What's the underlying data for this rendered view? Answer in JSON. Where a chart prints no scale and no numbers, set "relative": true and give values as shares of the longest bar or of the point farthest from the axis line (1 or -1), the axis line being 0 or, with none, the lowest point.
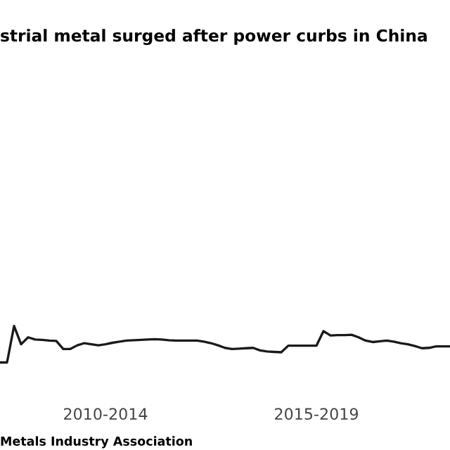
{
  "chart_data": {
    "type": "line",
    "title": "strial metal surged after power curbs in China",
    "annotations": [
      "Metals Industry Association"
    ],
    "relative": true,
    "categories": [
      null,
      null,
      null,
      null,
      null,
      null,
      null,
      null,
      null,
      null,
      null,
      null,
      null,
      null,
      null,
      "2010-2014",
      null,
      null,
      null,
      null,
      null,
      null,
      null,
      null,
      null,
      null,
      null,
      null,
      null,
      null,
      null,
      null,
      null,
      null,
      null,
      null,
      null,
      null,
      null,
      null,
      null,
      null,
      null,
      null,
      null,
      "2015-2019",
      null,
      null,
      null,
      null,
      null,
      null,
      null,
      null,
      null,
      null,
      null,
      null,
      null,
      null,
      null,
      null,
      null,
      null,
      null
    ],
    "series": [
      {
        "color": "#1a1a1a",
        "values": [
          0,
          0,
          1,
          0.5,
          0.69,
          0.63,
          0.62,
          0.6,
          0.59,
          0.37,
          0.37,
          0.47,
          0.53,
          0.5,
          0.47,
          0.5,
          0.54,
          0.57,
          0.6,
          0.61,
          0.62,
          0.63,
          0.64,
          0.63,
          0.61,
          0.6,
          0.6,
          0.6,
          0.6,
          0.57,
          0.53,
          0.47,
          0.4,
          0.37,
          0.38,
          0.39,
          0.4,
          0.33,
          0.3,
          0.29,
          0.28,
          0.46,
          0.46,
          0.46,
          0.46,
          0.46,
          0.86,
          0.74,
          0.75,
          0.75,
          0.76,
          0.69,
          0.6,
          0.56,
          0.58,
          0.6,
          0.57,
          0.53,
          0.5,
          0.45,
          0.39,
          0.4,
          0.44,
          0.44,
          0.44
        ]
      }
    ],
    "line_style": "solid",
    "marker": "none"
  }
}
